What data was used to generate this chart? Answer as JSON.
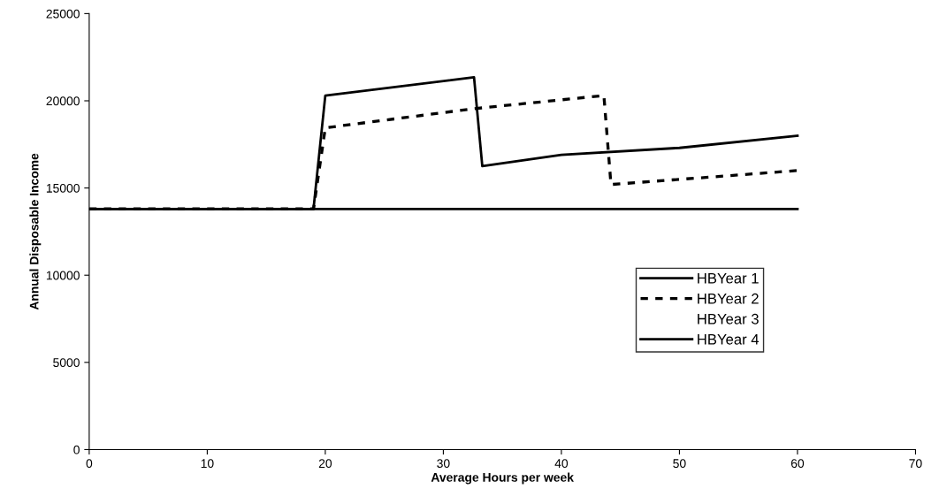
{
  "chart_data": {
    "type": "line",
    "xlabel": "Average Hours per week",
    "ylabel": "Annual Disposable Income",
    "xlim": [
      0,
      70
    ],
    "xticks": [
      0,
      10,
      20,
      30,
      40,
      50,
      60,
      70
    ],
    "ylim": [
      0,
      25000
    ],
    "yticks": [
      0,
      5000,
      10000,
      15000,
      20000,
      25000
    ],
    "grid": false,
    "legend": "right",
    "marker": "none",
    "series": [
      {
        "name": "HBYear 1",
        "color": "#000000",
        "line_style": "solid",
        "x": [
          0,
          19,
          20,
          32.6,
          33.3,
          40,
          50,
          60
        ],
        "values": [
          13800,
          13800,
          20300,
          21350,
          16250,
          16900,
          17300,
          18000
        ]
      },
      {
        "name": "HBYear 2",
        "color": "#000000",
        "line_style": "dashed",
        "x": [
          0,
          19,
          20,
          32.6,
          43.6,
          44.2,
          60
        ],
        "values": [
          13800,
          13800,
          18450,
          19550,
          20300,
          15200,
          16000
        ]
      },
      {
        "name": "HBYear 3",
        "line_style": "none"
      },
      {
        "name": "HBYear 4",
        "color": "#000000",
        "line_style": "solid",
        "x": [
          0,
          60
        ],
        "values": [
          13800,
          13800
        ]
      }
    ]
  }
}
